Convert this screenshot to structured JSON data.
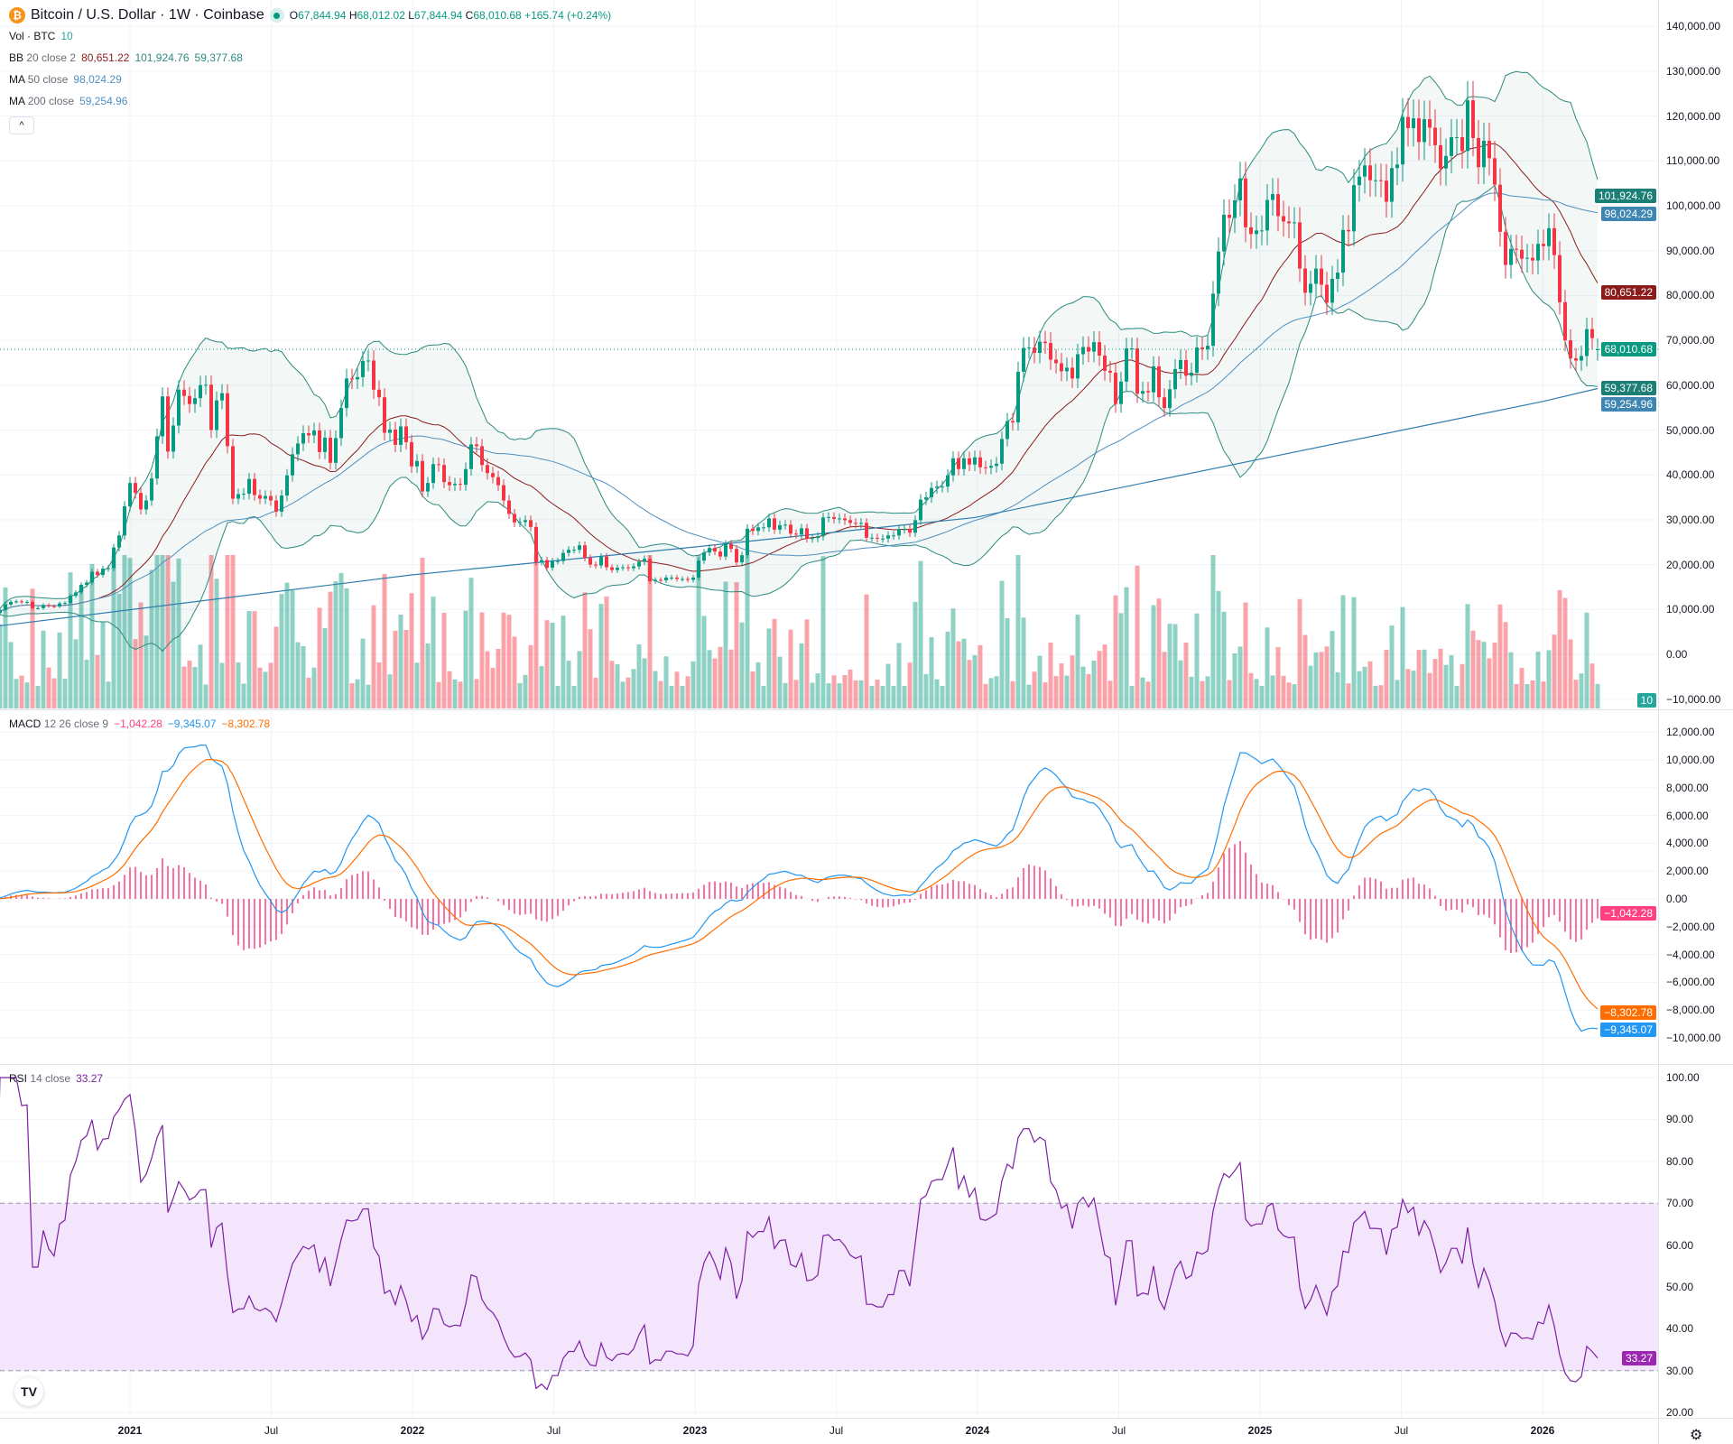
{
  "header": {
    "title": "Bitcoin / U.S. Dollar · 1W · Coinbase",
    "o_label": "O",
    "o": "67,844.94",
    "h_label": "H",
    "h": "68,012.02",
    "l_label": "L",
    "l": "67,844.94",
    "c_label": "C",
    "c": "68,010.68",
    "change": "+165.74 (+0.24%)"
  },
  "legends": {
    "vol": {
      "name": "Vol · BTC",
      "value": "10"
    },
    "bb": {
      "name": "BB",
      "params": "20 close 2",
      "basis": "80,651.22",
      "upper": "101,924.76",
      "lower": "59,377.68"
    },
    "ma50": {
      "name": "MA",
      "params": "50 close",
      "value": "98,024.29"
    },
    "ma200": {
      "name": "MA",
      "params": "200 close",
      "value": "59,254.96"
    },
    "macd": {
      "name": "MACD",
      "params": "12 26 close 9",
      "hist": "−1,042.28",
      "macd": "−9,345.07",
      "signal": "−8,302.78"
    },
    "rsi": {
      "name": "RSI",
      "params": "14 close",
      "value": "33.27"
    }
  },
  "price_axis": [
    "140,000.00",
    "130,000.00",
    "120,000.00",
    "110,000.00",
    "100,000.00",
    "90,000.00",
    "80,000.00",
    "70,000.00",
    "60,000.00",
    "50,000.00",
    "40,000.00",
    "30,000.00",
    "20,000.00",
    "10,000.00",
    "0.00",
    "−10,000.00"
  ],
  "macd_axis": [
    "12,000.00",
    "10,000.00",
    "8,000.00",
    "6,000.00",
    "4,000.00",
    "2,000.00",
    "0.00",
    "−2,000.00",
    "−4,000.00",
    "−6,000.00",
    "−8,000.00",
    "−10,000.00"
  ],
  "rsi_axis": [
    "100.00",
    "90.00",
    "80.00",
    "70.00",
    "60.00",
    "50.00",
    "40.00",
    "30.00",
    "20.00"
  ],
  "badges": {
    "bb_upper": "101,924.76",
    "ma50": "98,024.29",
    "bb_basis": "80,651.22",
    "last": "68,010.68",
    "bb_lower": "59,377.68",
    "ma200": "59,254.96",
    "vol": "10",
    "macd_hist": "−1,042.28",
    "signal": "−8,302.78",
    "macd": "−9,345.07",
    "rsi": "33.27"
  },
  "time_axis": [
    "2021",
    "Jul",
    "2022",
    "Jul",
    "2023",
    "Jul",
    "2024",
    "Jul",
    "2025",
    "Jul",
    "2026"
  ],
  "colors": {
    "up": "#089981",
    "down": "#f23645",
    "bb": "#2b8a7e",
    "bb_basis": "#8b1a1a",
    "ma50": "#4f8fbf",
    "ma200": "#2e7dae",
    "macd": "#2196f3",
    "signal": "#ff6d00",
    "hist": "#ff4081",
    "rsi": "#7e1fa4",
    "rsi_band": "#f3e5fc"
  },
  "chart_data": {
    "type": "candlestick",
    "symbol": "Bitcoin / U.S. Dollar",
    "interval": "1W",
    "first_week": "2020-07-13",
    "ylim": [
      -10000,
      140000
    ],
    "closes": [
      9200,
      9900,
      11100,
      11700,
      11800,
      11650,
      11700,
      10300,
      10300,
      11000,
      10750,
      10650,
      11350,
      11450,
      13050,
      13800,
      15500,
      16000,
      18400,
      17700,
      19100,
      19200,
      23800,
      26500,
      33000,
      38200,
      36000,
      32300,
      34300,
      39200,
      48600,
      57500,
      45200,
      51000,
      59000,
      57600,
      55800,
      57100,
      60000,
      60100,
      50000,
      56600,
      58200,
      46400,
      34700,
      35700,
      35800,
      39100,
      35500,
      34700,
      35300,
      34300,
      31800,
      35400,
      39900,
      44600,
      47000,
      49300,
      48800,
      49900,
      45100,
      48300,
      42700,
      48200,
      54900,
      61500,
      61300,
      61800,
      65400,
      65500,
      59000,
      57300,
      49400,
      50100,
      46700,
      50800,
      47300,
      41900,
      43100,
      36300,
      38200,
      42400,
      42200,
      38400,
      37700,
      38000,
      37800,
      41300,
      46800,
      46400,
      42200,
      40400,
      39500,
      37700,
      34300,
      31300,
      29400,
      29500,
      29900,
      28400,
      20500,
      21000,
      19300,
      20800,
      20800,
      22600,
      23300,
      23300,
      24300,
      21500,
      20000,
      19800,
      21800,
      19400,
      18800,
      19300,
      19400,
      19200,
      19600,
      20600,
      21300,
      16300,
      16600,
      16500,
      17100,
      17100,
      16800,
      16800,
      16600,
      17100,
      20900,
      22700,
      23700,
      22900,
      21800,
      24600,
      23500,
      20500,
      22100,
      28000,
      27500,
      28300,
      28300,
      30300,
      27800,
      28800,
      28900,
      26900,
      26700,
      28100,
      25800,
      25900,
      26300,
      30500,
      30600,
      30200,
      30300,
      29900,
      29300,
      29100,
      29300,
      26000,
      26000,
      25800,
      25800,
      26500,
      26500,
      27900,
      27900,
      27100,
      29900,
      34500,
      35000,
      37100,
      37400,
      37400,
      39900,
      43700,
      41300,
      43700,
      42300,
      43900,
      41700,
      41600,
      42000,
      42500,
      48000,
      52000,
      51700,
      63000,
      68300,
      68400,
      67200,
      69700,
      69400,
      65700,
      64900,
      63100,
      63900,
      61500,
      66900,
      68500,
      67500,
      69600,
      66600,
      63200,
      62800,
      55800,
      60800,
      68200,
      68200,
      58100,
      58700,
      58400,
      64200,
      57300,
      54900,
      59100,
      63600,
      65600,
      62100,
      62800,
      68400,
      68000,
      68800,
      80400,
      89800,
      98000,
      97300,
      101200,
      106100,
      95200,
      93700,
      94500,
      94500,
      101300,
      102600,
      97700,
      96500,
      96100,
      96300,
      86000,
      80600,
      82600,
      86000,
      82400,
      78400,
      83700,
      85100,
      94600,
      94300,
      104600,
      106500,
      109000,
      105700,
      105700,
      105600,
      100900,
      108400,
      109200,
      119800,
      117300,
      119500,
      114200,
      119300,
      117400,
      113500,
      108300,
      111100,
      115300,
      115300,
      112200,
      123500,
      115100,
      108600,
      114500,
      110600,
      104700,
      94200,
      86800,
      90400,
      90200,
      88200,
      88400,
      87800,
      91500,
      91000,
      95000,
      89000,
      78500,
      70000,
      66000,
      65500,
      66500,
      72500,
      70500,
      68010.68
    ],
    "last_open": 67844.94,
    "ma200_keypoints": [
      {
        "date": "2020-07-13",
        "value": 6200
      },
      {
        "date": "2022-01-03",
        "value": 17700
      },
      {
        "date": "2023-01-02",
        "value": 23900
      },
      {
        "date": "2024-01-01",
        "value": 30500
      },
      {
        "date": "2025-01-06",
        "value": 43600
      },
      {
        "date": "2026-01-05",
        "value": 56400
      },
      {
        "date": "2026-03-16",
        "value": 59254.96
      }
    ],
    "overbought": 70,
    "oversold": 30
  }
}
